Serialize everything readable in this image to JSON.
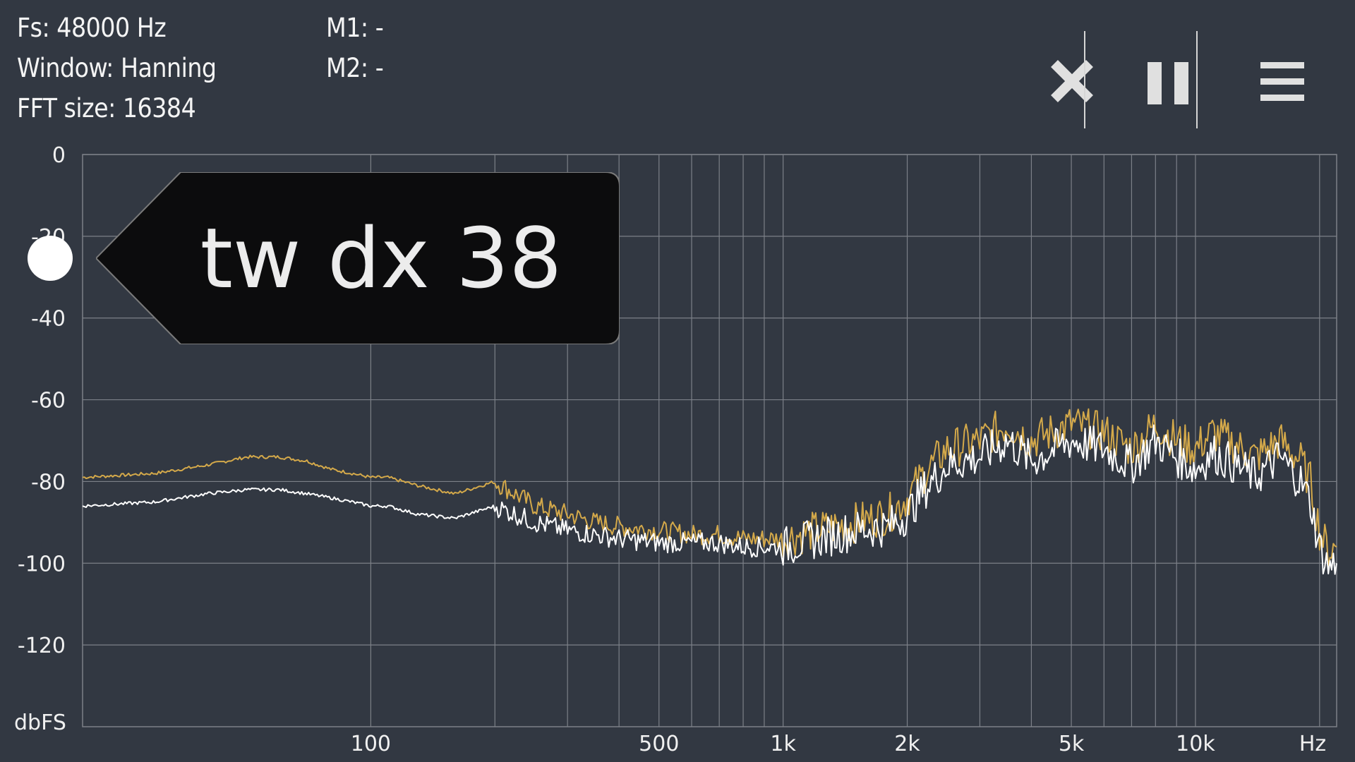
{
  "info": {
    "fs": "Fs: 48000 Hz",
    "window": "Window: Hanning",
    "fft": "FFT size: 16384",
    "m1": "M1: -",
    "m2": "M2: -"
  },
  "toolbar": {
    "close_icon": "close-icon",
    "pause_icon": "pause-icon",
    "menu_icon": "menu-icon"
  },
  "marker": {
    "label": "tw dx 38"
  },
  "colors": {
    "background": "#323842",
    "grid": "#7c8088",
    "trace_white": "#ffffff",
    "trace_gold": "#d4a94a"
  },
  "chart_data": {
    "type": "line",
    "x_scale": "log",
    "xlim": [
      20,
      22000
    ],
    "ylim": [
      -140,
      0
    ],
    "grid": true,
    "ylabel": "dbFS",
    "xlabel": "Hz",
    "y_ticks": [
      0,
      -20,
      -40,
      -60,
      -80,
      -100,
      -120
    ],
    "y_tick_labels": [
      "0",
      "-20",
      "-40",
      "-60",
      "-80",
      "-100",
      "-120"
    ],
    "x_ticks": [
      100,
      500,
      1000,
      2000,
      5000,
      10000
    ],
    "x_tick_labels": [
      "100",
      "500",
      "1k",
      "2k",
      "5k",
      "10k"
    ],
    "x_gridlines": [
      100,
      200,
      300,
      400,
      500,
      600,
      700,
      800,
      900,
      1000,
      2000,
      3000,
      4000,
      5000,
      6000,
      7000,
      8000,
      9000,
      10000,
      20000
    ],
    "series": [
      {
        "color": "#d4a94a",
        "x": [
          20,
          30,
          40,
          50,
          60,
          70,
          80,
          90,
          100,
          110,
          130,
          160,
          200,
          250,
          300,
          350,
          400,
          500,
          600,
          700,
          800,
          1000,
          1200,
          1500,
          1800,
          2000,
          2200,
          2500,
          3000,
          3500,
          4000,
          5000,
          6000,
          7000,
          8000,
          9000,
          10000,
          11000,
          12000,
          14000,
          16000,
          18000,
          19000,
          20000,
          21000,
          22000
        ],
        "y": [
          -79,
          -78,
          -76,
          -74,
          -74,
          -75,
          -77,
          -78,
          -79,
          -79,
          -81,
          -83,
          -80,
          -86,
          -88,
          -90,
          -91,
          -92,
          -93,
          -93,
          -94,
          -94,
          -92,
          -90,
          -88,
          -84,
          -78,
          -72,
          -70,
          -66,
          -70,
          -66,
          -68,
          -72,
          -66,
          -70,
          -72,
          -68,
          -70,
          -74,
          -70,
          -75,
          -80,
          -92,
          -97,
          -96
        ]
      },
      {
        "color": "#ffffff",
        "x": [
          20,
          30,
          40,
          50,
          60,
          70,
          80,
          90,
          100,
          110,
          130,
          160,
          200,
          250,
          300,
          350,
          400,
          500,
          600,
          700,
          800,
          1000,
          1200,
          1500,
          1800,
          2000,
          2200,
          2500,
          3000,
          3500,
          4000,
          5000,
          6000,
          7000,
          8000,
          9000,
          10000,
          11000,
          12000,
          14000,
          16000,
          18000,
          19000,
          20000,
          21000,
          22000
        ],
        "y": [
          -86,
          -85,
          -83,
          -82,
          -82,
          -83,
          -84,
          -85,
          -86,
          -86,
          -88,
          -89,
          -86,
          -90,
          -92,
          -93,
          -94,
          -95,
          -95,
          -95,
          -96,
          -96,
          -94,
          -92,
          -91,
          -88,
          -82,
          -76,
          -74,
          -70,
          -75,
          -70,
          -72,
          -76,
          -70,
          -74,
          -77,
          -73,
          -75,
          -79,
          -74,
          -80,
          -85,
          -96,
          -101,
          -100
        ]
      }
    ]
  }
}
